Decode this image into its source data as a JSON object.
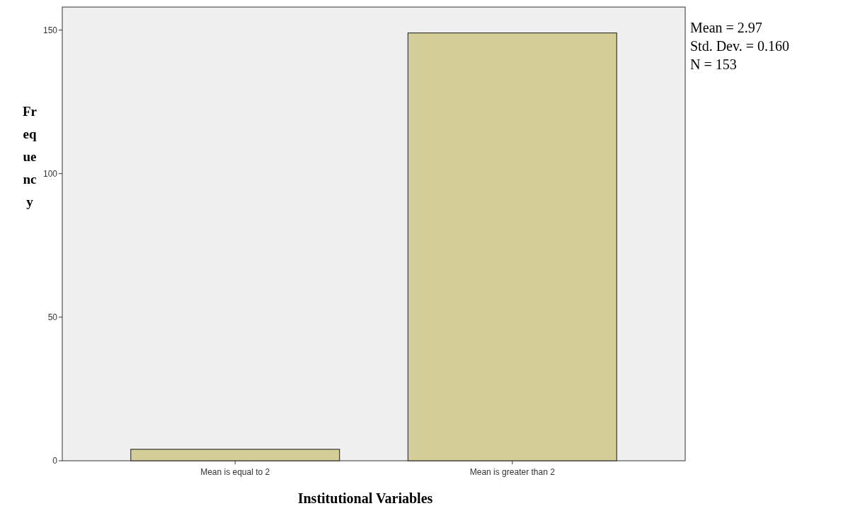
{
  "chart_data": {
    "type": "bar",
    "xlabel": "Institutional Variables",
    "ylabel": "Frequency",
    "categories": [
      "Mean is equal to 2",
      "Mean is greater than 2"
    ],
    "values": [
      4,
      149
    ],
    "color": "#d3ce97",
    "ylim": [
      0,
      158
    ],
    "yticks": [
      0,
      50,
      100,
      150
    ],
    "grid": false,
    "annotations": [
      "Mean = 2.97",
      "Std. Dev. =  0.160",
      "N = 153"
    ]
  }
}
